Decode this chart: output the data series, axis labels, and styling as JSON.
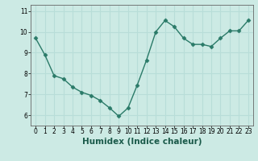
{
  "x": [
    0,
    1,
    2,
    3,
    4,
    5,
    6,
    7,
    8,
    9,
    10,
    11,
    12,
    13,
    14,
    15,
    16,
    17,
    18,
    19,
    20,
    21,
    22,
    23
  ],
  "y": [
    9.7,
    8.9,
    7.9,
    7.75,
    7.35,
    7.1,
    6.95,
    6.7,
    6.35,
    5.95,
    6.35,
    7.45,
    8.65,
    10.0,
    10.55,
    10.25,
    9.7,
    9.4,
    9.4,
    9.3,
    9.7,
    10.05,
    10.05,
    10.55
  ],
  "line_color": "#2a7a68",
  "marker": "D",
  "markersize": 2.5,
  "linewidth": 1.0,
  "xlabel": "Humidex (Indice chaleur)",
  "xlabel_fontsize": 7.5,
  "xlabel_bold": true,
  "ylim": [
    5.5,
    11.3
  ],
  "xlim": [
    -0.5,
    23.5
  ],
  "yticks": [
    6,
    7,
    8,
    9,
    10,
    11
  ],
  "xticks": [
    0,
    1,
    2,
    3,
    4,
    5,
    6,
    7,
    8,
    9,
    10,
    11,
    12,
    13,
    14,
    15,
    16,
    17,
    18,
    19,
    20,
    21,
    22,
    23
  ],
  "grid_color": "#b8ddd8",
  "bg_color": "#cceae4",
  "tick_fontsize": 5.5,
  "fig_bg": "#cceae4",
  "spine_color": "#666666"
}
